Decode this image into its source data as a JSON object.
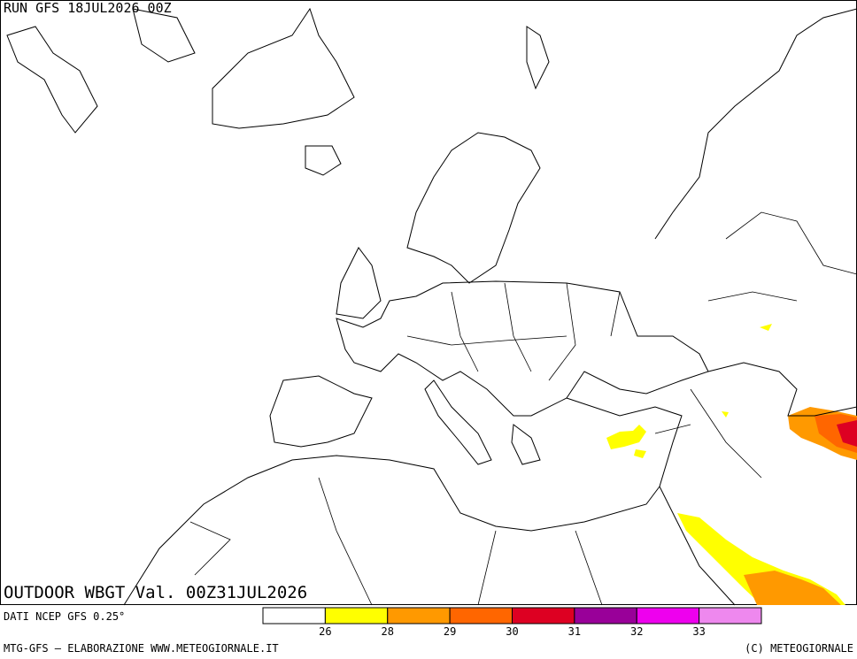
{
  "header": {
    "run": "RUN GFS 18JUL2026 00Z"
  },
  "map": {
    "title": "OUTDOOR WBGT Val. 00Z31JUL2026"
  },
  "legend": {
    "source": "DATI NCEP GFS 0.25°",
    "colors": [
      "#ffffff",
      "#ffff00",
      "#ff9900",
      "#ff6600",
      "#dd0022",
      "#990099",
      "#ee00ee",
      "#ee88ee"
    ],
    "ticks": [
      26,
      28,
      29,
      30,
      31,
      32,
      33
    ]
  },
  "footer": {
    "left": "MTG-GFS — ELABORAZIONE WWW.METEOGIORNALE.IT",
    "right": "(C) METEOGIORNALE"
  }
}
